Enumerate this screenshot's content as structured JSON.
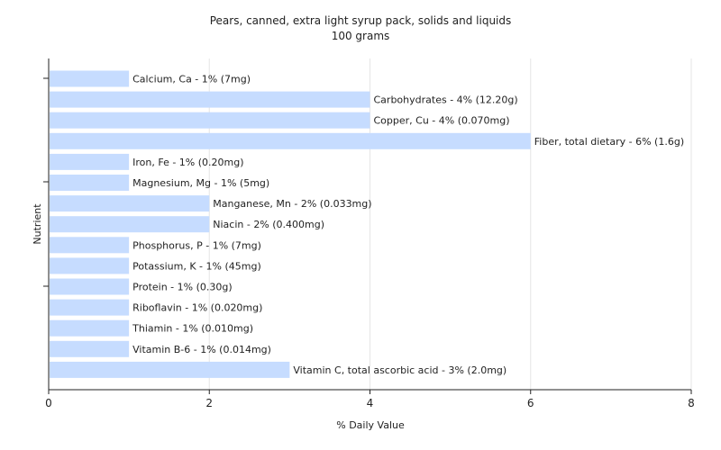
{
  "chart_data": {
    "type": "bar",
    "orientation": "horizontal",
    "title": "Pears, canned, extra light syrup pack, solids and liquids",
    "subtitle": "100 grams",
    "xlabel": "% Daily Value",
    "ylabel": "Nutrient",
    "xlim": [
      0,
      8
    ],
    "xticks": [
      "0",
      "2",
      "4",
      "6",
      "8"
    ],
    "grid": true,
    "bar_color": "#c6dcff",
    "categories": [
      "Calcium, Ca",
      "Carbohydrates",
      "Copper, Cu",
      "Fiber, total dietary",
      "Iron, Fe",
      "Magnesium, Mg",
      "Manganese, Mn",
      "Niacin",
      "Phosphorus, P",
      "Potassium, K",
      "Protein",
      "Riboflavin",
      "Thiamin",
      "Vitamin B-6",
      "Vitamin C, total ascorbic acid"
    ],
    "values": [
      1,
      4,
      4,
      6,
      1,
      1,
      2,
      2,
      1,
      1,
      1,
      1,
      1,
      1,
      3
    ],
    "bar_labels": [
      "Calcium, Ca - 1% (7mg)",
      "Carbohydrates - 4% (12.20g)",
      "Copper, Cu - 4% (0.070mg)",
      "Fiber, total dietary - 6% (1.6g)",
      "Iron, Fe - 1% (0.20mg)",
      "Magnesium, Mg - 1% (5mg)",
      "Manganese, Mn - 2% (0.033mg)",
      "Niacin - 2% (0.400mg)",
      "Phosphorus, P - 1% (7mg)",
      "Potassium, K - 1% (45mg)",
      "Protein - 1% (0.30g)",
      "Riboflavin - 1% (0.020mg)",
      "Thiamin - 1% (0.010mg)",
      "Vitamin B-6 - 1% (0.014mg)",
      "Vitamin C, total ascorbic acid - 3% (2.0mg)"
    ]
  }
}
